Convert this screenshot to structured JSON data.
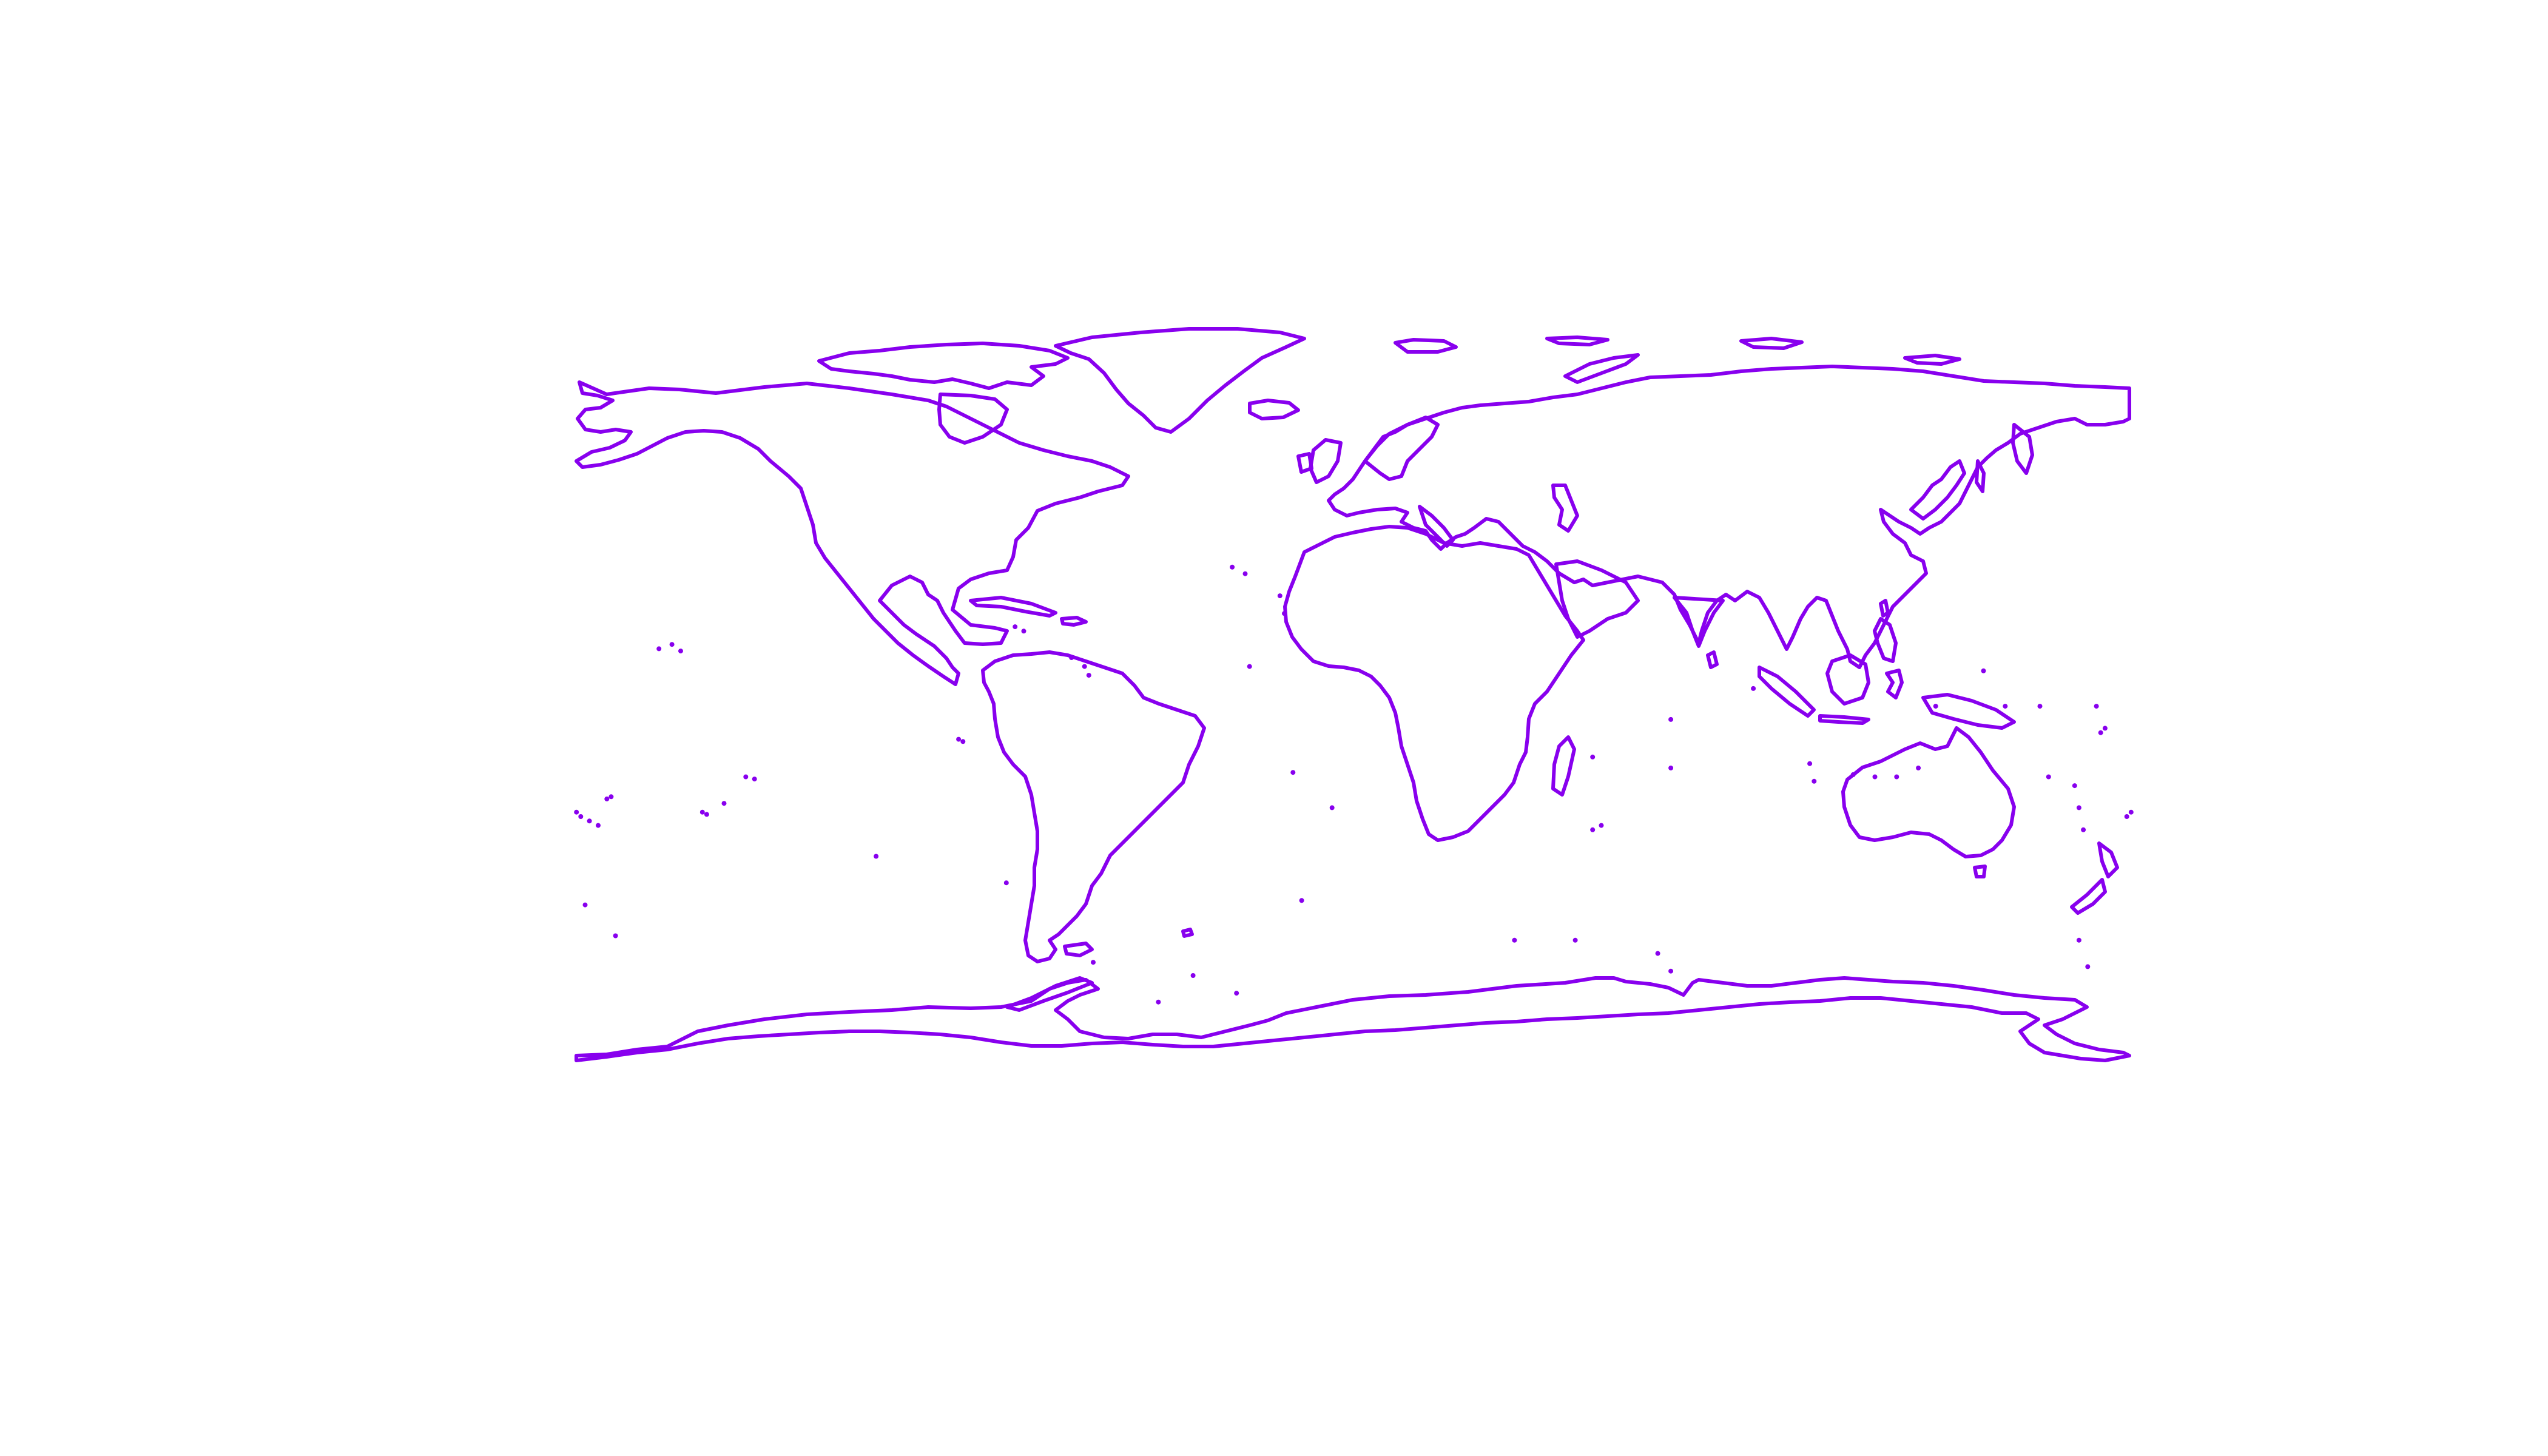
{
  "map": {
    "projection": "equirectangular",
    "extent": {
      "lon": [
        -180,
        180
      ],
      "lat": [
        -90,
        90
      ]
    },
    "style": {
      "coastline_color": "#8800ee",
      "background": "#ffffff"
    }
  }
}
